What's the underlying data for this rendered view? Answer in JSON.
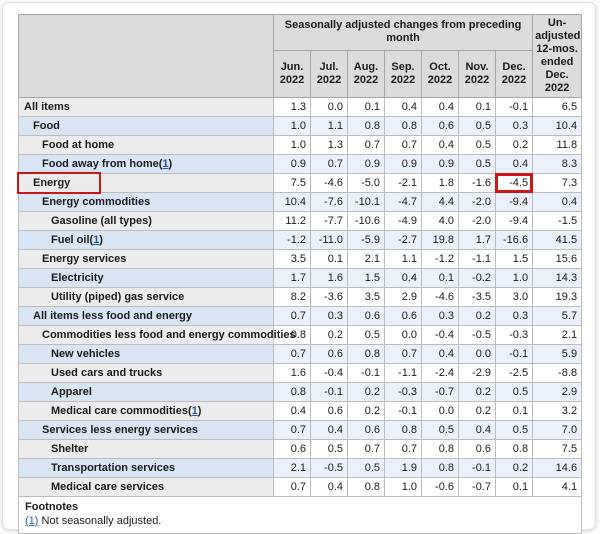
{
  "table": {
    "span_header": "Seasonally adjusted changes from preceding month",
    "unadjusted_header_lines": [
      "Un-",
      "adjusted",
      "12-mos.",
      "ended",
      "Dec. 2022"
    ],
    "month_columns": [
      {
        "month": "Jun.",
        "year": "2022"
      },
      {
        "month": "Jul.",
        "year": "2022"
      },
      {
        "month": "Aug.",
        "year": "2022"
      },
      {
        "month": "Sep.",
        "year": "2022"
      },
      {
        "month": "Oct.",
        "year": "2022"
      },
      {
        "month": "Nov.",
        "year": "2022"
      },
      {
        "month": "Dec.",
        "year": "2022"
      }
    ],
    "rows": [
      {
        "label": "All items",
        "indent": 0,
        "values": [
          "1.3",
          "0.0",
          "0.1",
          "0.4",
          "0.4",
          "0.1",
          "-0.1",
          "6.5"
        ]
      },
      {
        "label": "Food",
        "indent": 1,
        "values": [
          "1.0",
          "1.1",
          "0.8",
          "0.8",
          "0.6",
          "0.5",
          "0.3",
          "10.4"
        ]
      },
      {
        "label": "Food at home",
        "indent": 2,
        "values": [
          "1.0",
          "1.3",
          "0.7",
          "0.7",
          "0.4",
          "0.5",
          "0.2",
          "11.8"
        ]
      },
      {
        "label": "Food away from home",
        "footnote": "1",
        "indent": 2,
        "values": [
          "0.9",
          "0.7",
          "0.9",
          "0.9",
          "0.9",
          "0.5",
          "0.4",
          "8.3"
        ]
      },
      {
        "label": "Energy",
        "indent": 1,
        "highlight_label": true,
        "highlight_value_index": 6,
        "values": [
          "7.5",
          "-4.6",
          "-5.0",
          "-2.1",
          "1.8",
          "-1.6",
          "-4.5",
          "7.3"
        ]
      },
      {
        "label": "Energy commodities",
        "indent": 2,
        "values": [
          "10.4",
          "-7.6",
          "-10.1",
          "-4.7",
          "4.4",
          "-2.0",
          "-9.4",
          "0.4"
        ]
      },
      {
        "label": "Gasoline (all types)",
        "indent": 3,
        "values": [
          "11.2",
          "-7.7",
          "-10.6",
          "-4.9",
          "4.0",
          "-2.0",
          "-9.4",
          "-1.5"
        ]
      },
      {
        "label": "Fuel oil",
        "footnote": "1",
        "indent": 3,
        "values": [
          "-1.2",
          "-11.0",
          "-5.9",
          "-2.7",
          "19.8",
          "1.7",
          "-16.6",
          "41.5"
        ]
      },
      {
        "label": "Energy services",
        "indent": 2,
        "values": [
          "3.5",
          "0.1",
          "2.1",
          "1.1",
          "-1.2",
          "-1.1",
          "1.5",
          "15.6"
        ]
      },
      {
        "label": "Electricity",
        "indent": 3,
        "values": [
          "1.7",
          "1.6",
          "1.5",
          "0.4",
          "0.1",
          "-0.2",
          "1.0",
          "14.3"
        ]
      },
      {
        "label": "Utility (piped) gas service",
        "indent": 3,
        "values": [
          "8.2",
          "-3.6",
          "3.5",
          "2.9",
          "-4.6",
          "-3.5",
          "3.0",
          "19.3"
        ]
      },
      {
        "label": "All items less food and energy",
        "indent": 1,
        "values": [
          "0.7",
          "0.3",
          "0.6",
          "0.6",
          "0.3",
          "0.2",
          "0.3",
          "5.7"
        ]
      },
      {
        "label": "Commodities less food and energy commodities",
        "indent": 2,
        "values": [
          "0.8",
          "0.2",
          "0.5",
          "0.0",
          "-0.4",
          "-0.5",
          "-0.3",
          "2.1"
        ]
      },
      {
        "label": "New vehicles",
        "indent": 3,
        "values": [
          "0.7",
          "0.6",
          "0.8",
          "0.7",
          "0.4",
          "0.0",
          "-0.1",
          "5.9"
        ]
      },
      {
        "label": "Used cars and trucks",
        "indent": 3,
        "values": [
          "1.6",
          "-0.4",
          "-0.1",
          "-1.1",
          "-2.4",
          "-2.9",
          "-2.5",
          "-8.8"
        ]
      },
      {
        "label": "Apparel",
        "indent": 3,
        "values": [
          "0.8",
          "-0.1",
          "0.2",
          "-0.3",
          "-0.7",
          "0.2",
          "0.5",
          "2.9"
        ]
      },
      {
        "label": "Medical care commodities",
        "footnote": "1",
        "indent": 3,
        "values": [
          "0.4",
          "0.6",
          "0.2",
          "-0.1",
          "0.0",
          "0.2",
          "0.1",
          "3.2"
        ]
      },
      {
        "label": "Services less energy services",
        "indent": 2,
        "values": [
          "0.7",
          "0.4",
          "0.6",
          "0.8",
          "0.5",
          "0.4",
          "0.5",
          "7.0"
        ]
      },
      {
        "label": "Shelter",
        "indent": 3,
        "values": [
          "0.6",
          "0.5",
          "0.7",
          "0.7",
          "0.8",
          "0.6",
          "0.8",
          "7.5"
        ]
      },
      {
        "label": "Transportation services",
        "indent": 3,
        "values": [
          "2.1",
          "-0.5",
          "0.5",
          "1.9",
          "0.8",
          "-0.1",
          "0.2",
          "14.6"
        ]
      },
      {
        "label": "Medical care services",
        "indent": 3,
        "values": [
          "0.7",
          "0.4",
          "0.8",
          "1.0",
          "-0.6",
          "-0.7",
          "0.1",
          "4.1"
        ]
      }
    ],
    "footnotes": {
      "title": "Footnotes",
      "items": [
        {
          "marker": "(1)",
          "text": "Not seasonally adjusted."
        }
      ]
    }
  },
  "colors": {
    "highlight_red": "#cd1717",
    "link_blue": "#2a56ad",
    "header_gray": "#dcdcdc",
    "stub_gray": "#ececec",
    "stub_blue": "#d9e4f4",
    "data_blue": "#eaf1fb"
  },
  "chart_data": {
    "type": "table",
    "title": "Seasonally adjusted changes from preceding month",
    "columns": [
      "Item",
      "Jun. 2022",
      "Jul. 2022",
      "Aug. 2022",
      "Sep. 2022",
      "Oct. 2022",
      "Nov. 2022",
      "Dec. 2022",
      "Un-adjusted 12-mos. ended Dec. 2022"
    ],
    "rows": [
      [
        "All items",
        1.3,
        0.0,
        0.1,
        0.4,
        0.4,
        0.1,
        -0.1,
        6.5
      ],
      [
        "Food",
        1.0,
        1.1,
        0.8,
        0.8,
        0.6,
        0.5,
        0.3,
        10.4
      ],
      [
        "Food at home",
        1.0,
        1.3,
        0.7,
        0.7,
        0.4,
        0.5,
        0.2,
        11.8
      ],
      [
        "Food away from home(1)",
        0.9,
        0.7,
        0.9,
        0.9,
        0.9,
        0.5,
        0.4,
        8.3
      ],
      [
        "Energy",
        7.5,
        -4.6,
        -5.0,
        -2.1,
        1.8,
        -1.6,
        -4.5,
        7.3
      ],
      [
        "Energy commodities",
        10.4,
        -7.6,
        -10.1,
        -4.7,
        4.4,
        -2.0,
        -9.4,
        0.4
      ],
      [
        "Gasoline (all types)",
        11.2,
        -7.7,
        -10.6,
        -4.9,
        4.0,
        -2.0,
        -9.4,
        -1.5
      ],
      [
        "Fuel oil(1)",
        -1.2,
        -11.0,
        -5.9,
        -2.7,
        19.8,
        1.7,
        -16.6,
        41.5
      ],
      [
        "Energy services",
        3.5,
        0.1,
        2.1,
        1.1,
        -1.2,
        -1.1,
        1.5,
        15.6
      ],
      [
        "Electricity",
        1.7,
        1.6,
        1.5,
        0.4,
        0.1,
        -0.2,
        1.0,
        14.3
      ],
      [
        "Utility (piped) gas service",
        8.2,
        -3.6,
        3.5,
        2.9,
        -4.6,
        -3.5,
        3.0,
        19.3
      ],
      [
        "All items less food and energy",
        0.7,
        0.3,
        0.6,
        0.6,
        0.3,
        0.2,
        0.3,
        5.7
      ],
      [
        "Commodities less food and energy commodities",
        0.8,
        0.2,
        0.5,
        0.0,
        -0.4,
        -0.5,
        -0.3,
        2.1
      ],
      [
        "New vehicles",
        0.7,
        0.6,
        0.8,
        0.7,
        0.4,
        0.0,
        -0.1,
        5.9
      ],
      [
        "Used cars and trucks",
        1.6,
        -0.4,
        -0.1,
        -1.1,
        -2.4,
        -2.9,
        -2.5,
        -8.8
      ],
      [
        "Apparel",
        0.8,
        -0.1,
        0.2,
        -0.3,
        -0.7,
        0.2,
        0.5,
        2.9
      ],
      [
        "Medical care commodities(1)",
        0.4,
        0.6,
        0.2,
        -0.1,
        0.0,
        0.2,
        0.1,
        3.2
      ],
      [
        "Services less energy services",
        0.7,
        0.4,
        0.6,
        0.8,
        0.5,
        0.4,
        0.5,
        7.0
      ],
      [
        "Shelter",
        0.6,
        0.5,
        0.7,
        0.7,
        0.8,
        0.6,
        0.8,
        7.5
      ],
      [
        "Transportation services",
        2.1,
        -0.5,
        0.5,
        1.9,
        0.8,
        -0.1,
        0.2,
        14.6
      ],
      [
        "Medical care services",
        0.7,
        0.4,
        0.8,
        1.0,
        -0.6,
        -0.7,
        0.1,
        4.1
      ]
    ],
    "annotations": [
      "red box around row label 'Energy'",
      "red box around Energy Dec. 2022 value -4.5"
    ]
  }
}
